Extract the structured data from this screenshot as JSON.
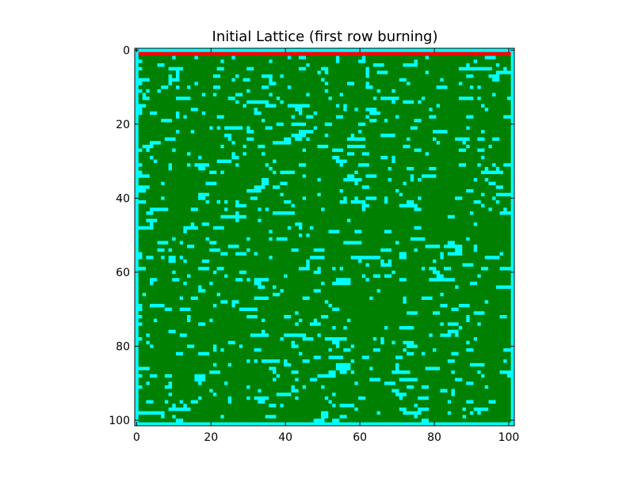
{
  "chart_data": {
    "type": "heatmap",
    "title": "Initial Lattice (first row burning)",
    "xlabel": "",
    "ylabel": "",
    "grid_size": 102,
    "xlim": [
      0,
      101
    ],
    "ylim": [
      101,
      0
    ],
    "x_ticks": [
      "0",
      "20",
      "40",
      "60",
      "80",
      "100"
    ],
    "y_ticks": [
      "0",
      "20",
      "40",
      "60",
      "80",
      "100"
    ],
    "grid": false,
    "legend": "none",
    "colors": {
      "border": "#00ffff",
      "empty": "#00ffff",
      "tree": "#008000",
      "burning": "#ff0000"
    },
    "states": {
      "empty": "cyan cell (bare ground)",
      "tree": "green cell",
      "burning": "red cell"
    },
    "burning_row": 1,
    "tree_density": 0.72
  }
}
